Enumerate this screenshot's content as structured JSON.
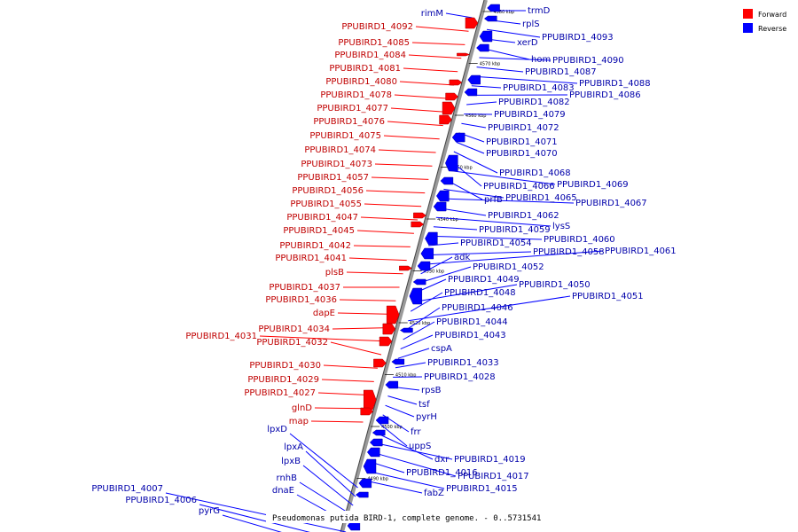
{
  "caption": "Pseudomonas putida BIRD-1, complete genome. - 0..5731541",
  "legend": [
    {
      "label": "Forward",
      "color": "#ff0000"
    },
    {
      "label": "Reverse",
      "color": "#0000ff"
    }
  ],
  "colors": {
    "forward": "#ff0000",
    "reverse": "#0000ff",
    "forward_text": "#c00000",
    "reverse_text": "#0000aa",
    "backbone": "#888888"
  },
  "ticks": [
    "4580 kbp",
    "4570 kbp",
    "4560 kbp",
    "4550 kbp",
    "4540 kbp",
    "4530 kbp",
    "4520 kbp",
    "4510 kbp",
    "4500 kbp",
    "4490 kbp"
  ],
  "forward_labels": [
    "rimM",
    "PPUBIRD1_4092",
    "PPUBIRD1_4085",
    "PPUBIRD1_4084",
    "PPUBIRD1_4081",
    "PPUBIRD1_4080",
    "PPUBIRD1_4078",
    "PPUBIRD1_4077",
    "PPUBIRD1_4076",
    "PPUBIRD1_4075",
    "PPUBIRD1_4074",
    "PPUBIRD1_4073",
    "PPUBIRD1_4057",
    "PPUBIRD1_4056",
    "PPUBIRD1_4055",
    "PPUBIRD1_4047",
    "PPUBIRD1_4045",
    "PPUBIRD1_4042",
    "PPUBIRD1_4041",
    "plsB",
    "PPUBIRD1_4037",
    "PPUBIRD1_4036",
    "dapE",
    "PPUBIRD1_4034",
    "PPUBIRD1_4031",
    "PPUBIRD1_4032",
    "PPUBIRD1_4030",
    "PPUBIRD1_4029",
    "PPUBIRD1_4027",
    "glnD",
    "map"
  ],
  "forward_label_blue": [
    "rimM"
  ],
  "reverse_left_labels": [
    "lpxD",
    "lpxA",
    "lpxB",
    "rnhB",
    "dnaE",
    "PPUBIRD1_4007",
    "PPUBIRD1_4006",
    "pyrG"
  ],
  "reverse_labels": [
    "trmD",
    "rplS",
    "PPUBIRD1_4093",
    "xerD",
    "hom",
    "PPUBIRD1_4090",
    "PPUBIRD1_4087",
    "PPUBIRD1_4088",
    "PPUBIRD1_4083",
    "PPUBIRD1_4086",
    "PPUBIRD1_4082",
    "PPUBIRD1_4079",
    "PPUBIRD1_4072",
    "PPUBIRD1_4071",
    "PPUBIRD1_4070",
    "PPUBIRD1_4068",
    "PPUBIRD1_4066",
    "PPUBIRD1_4069",
    "prfB",
    "PPUBIRD1_4065",
    "PPUBIRD1_4067",
    "PPUBIRD1_4062",
    "lysS",
    "PPUBIRD1_4059",
    "PPUBIRD1_4060",
    "PPUBIRD1_4054",
    "PPUBIRD1_4058",
    "PPUBIRD1_4061",
    "adk",
    "PPUBIRD1_4052",
    "PPUBIRD1_4049",
    "PPUBIRD1_4050",
    "PPUBIRD1_4048",
    "PPUBIRD1_4051",
    "PPUBIRD1_4046",
    "PPUBIRD1_4044",
    "PPUBIRD1_4043",
    "cspA",
    "PPUBIRD1_4033",
    "PPUBIRD1_4028",
    "rpsB",
    "tsf",
    "pyrH",
    "frr",
    "uppS",
    "dxr",
    "PPUBIRD1_4019",
    "PPUBIRD1_4017",
    "PPUBIRD1_4016",
    "PPUBIRD1_4015",
    "fabZ"
  ]
}
